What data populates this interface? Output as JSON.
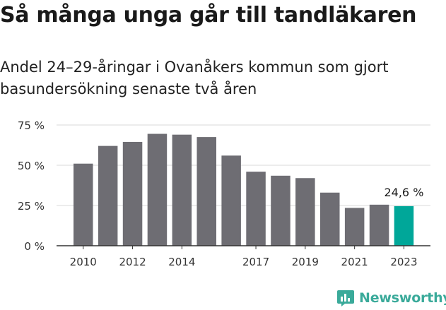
{
  "title": "Så många unga går till tandläkaren",
  "subtitle": "Andel 24–29-åringar i Ovanåkers kommun som gjort basundersökning senaste två åren",
  "brand": {
    "name": "Newsworthy",
    "icon": "newsworthy-chart-logo-icon",
    "color": "#3aaa9a"
  },
  "colors": {
    "bar": "#6e6d73",
    "highlight": "#00a799",
    "grid": "#d9d9d9",
    "axis": "#333333"
  },
  "chart_data": {
    "type": "bar",
    "categories": [
      "2010",
      "2011",
      "2012",
      "2013",
      "2014",
      "2015",
      "2016",
      "2017",
      "2018",
      "2019",
      "2020",
      "2021",
      "2022",
      "2023"
    ],
    "x_tick_labels": [
      "2010",
      "",
      "2012",
      "",
      "2014",
      "",
      "",
      "2017",
      "",
      "2019",
      "",
      "2021",
      "",
      "2023"
    ],
    "values": [
      51,
      62,
      64.5,
      69.5,
      69,
      67.5,
      56,
      46,
      43.5,
      42,
      33,
      23.5,
      25.5,
      24.6
    ],
    "unit": "%",
    "ylim": [
      0,
      75
    ],
    "y_ticks": [
      "0 %",
      "25 %",
      "50 %",
      "75 %"
    ],
    "y_tick_values": [
      0,
      25,
      50,
      75
    ],
    "grid": true,
    "highlight_index": 13,
    "annotation": {
      "category": "2023",
      "text": "24,6 %"
    },
    "title": "Så många unga går till tandläkaren",
    "xlabel": "",
    "ylabel": ""
  }
}
